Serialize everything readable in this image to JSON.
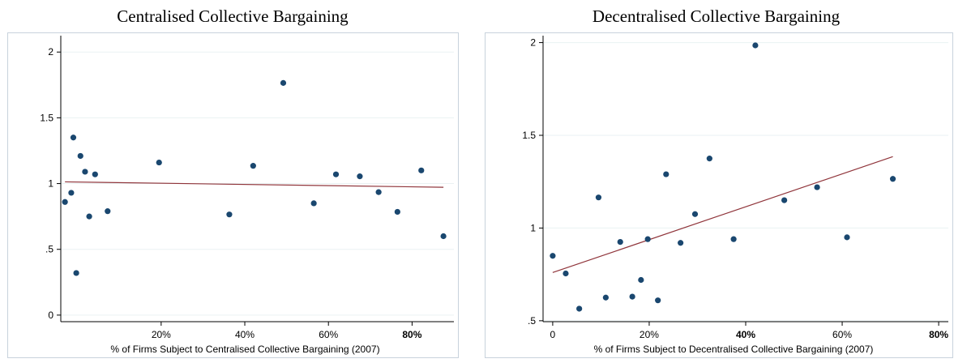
{
  "colors": {
    "points": "#1a476f",
    "fit_line": "#90353b",
    "grid": "#eaf2f3",
    "frame": "#c8d2dc"
  },
  "chart_data": [
    {
      "type": "scatter",
      "title": "Centralised Collective Bargaining",
      "xlabel": "% of Firms Subject to Centralised Collective Bargaining (2007)",
      "ylabel": "",
      "xlim": [
        -0.04,
        0.9
      ],
      "ylim": [
        -0.05,
        2.1
      ],
      "xticks": [
        {
          "value": 0.2,
          "label": "20%",
          "bold": false
        },
        {
          "value": 0.4,
          "label": "40%",
          "bold": false
        },
        {
          "value": 0.6,
          "label": "60%",
          "bold": false
        },
        {
          "value": 0.8,
          "label": "80%",
          "bold": true
        }
      ],
      "yticks": [
        {
          "value": 0,
          "label": "0"
        },
        {
          "value": 0.5,
          "label": ".5"
        },
        {
          "value": 1,
          "label": "1"
        },
        {
          "value": 1.5,
          "label": "1.5"
        },
        {
          "value": 2,
          "label": "2"
        }
      ],
      "grid": true,
      "points": [
        {
          "x": -0.03,
          "y": 0.86
        },
        {
          "x": -0.015,
          "y": 0.93
        },
        {
          "x": -0.01,
          "y": 1.35
        },
        {
          "x": -0.003,
          "y": 0.32
        },
        {
          "x": 0.007,
          "y": 1.21
        },
        {
          "x": 0.018,
          "y": 1.09
        },
        {
          "x": 0.028,
          "y": 0.75
        },
        {
          "x": 0.042,
          "y": 1.07
        },
        {
          "x": 0.072,
          "y": 0.79
        },
        {
          "x": 0.195,
          "y": 1.16
        },
        {
          "x": 0.363,
          "y": 0.765
        },
        {
          "x": 0.42,
          "y": 1.135
        },
        {
          "x": 0.492,
          "y": 1.765
        },
        {
          "x": 0.565,
          "y": 0.85
        },
        {
          "x": 0.618,
          "y": 1.07
        },
        {
          "x": 0.675,
          "y": 1.055
        },
        {
          "x": 0.72,
          "y": 0.935
        },
        {
          "x": 0.765,
          "y": 0.785
        },
        {
          "x": 0.822,
          "y": 1.1
        },
        {
          "x": 0.875,
          "y": 0.6
        }
      ],
      "fit_line": {
        "x": [
          -0.03,
          0.875
        ],
        "y": [
          1.013,
          0.972
        ]
      }
    },
    {
      "type": "scatter",
      "title": "Decentralised Collective Bargaining",
      "xlabel": "% of Firms Subject to Decentralised Collective Bargaining (2007)",
      "ylabel": "",
      "xlim": [
        -0.02,
        0.82
      ],
      "ylim": [
        0.495,
        2.02
      ],
      "xticks": [
        {
          "value": 0,
          "label": "0",
          "bold": false
        },
        {
          "value": 0.2,
          "label": "20%",
          "bold": false
        },
        {
          "value": 0.4,
          "label": "40%",
          "bold": true
        },
        {
          "value": 0.6,
          "label": "60%",
          "bold": false
        },
        {
          "value": 0.8,
          "label": "80%",
          "bold": true
        }
      ],
      "yticks": [
        {
          "value": 0.5,
          "label": ".5"
        },
        {
          "value": 1,
          "label": "1"
        },
        {
          "value": 1.5,
          "label": "1.5"
        },
        {
          "value": 2,
          "label": "2"
        }
      ],
      "grid": true,
      "points": [
        {
          "x": 0.0,
          "y": 0.85
        },
        {
          "x": 0.027,
          "y": 0.755
        },
        {
          "x": 0.055,
          "y": 0.565
        },
        {
          "x": 0.095,
          "y": 1.165
        },
        {
          "x": 0.11,
          "y": 0.625
        },
        {
          "x": 0.14,
          "y": 0.925
        },
        {
          "x": 0.165,
          "y": 0.63
        },
        {
          "x": 0.183,
          "y": 0.72
        },
        {
          "x": 0.197,
          "y": 0.94
        },
        {
          "x": 0.218,
          "y": 0.61
        },
        {
          "x": 0.235,
          "y": 1.29
        },
        {
          "x": 0.265,
          "y": 0.92
        },
        {
          "x": 0.295,
          "y": 1.075
        },
        {
          "x": 0.325,
          "y": 1.375
        },
        {
          "x": 0.375,
          "y": 0.94
        },
        {
          "x": 0.42,
          "y": 1.985
        },
        {
          "x": 0.48,
          "y": 1.15
        },
        {
          "x": 0.548,
          "y": 1.22
        },
        {
          "x": 0.61,
          "y": 0.95
        },
        {
          "x": 0.705,
          "y": 1.265
        }
      ],
      "fit_line": {
        "x": [
          0.0,
          0.705
        ],
        "y": [
          0.76,
          1.385
        ]
      }
    }
  ]
}
